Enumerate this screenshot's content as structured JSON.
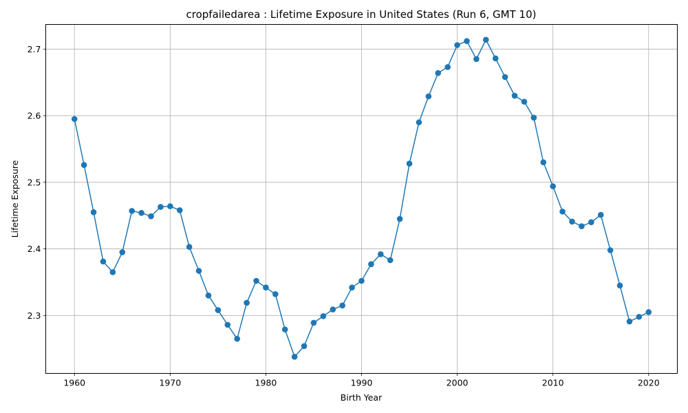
{
  "chart_data": {
    "type": "line",
    "title": "cropfailedarea : Lifetime Exposure in United States (Run 6, GMT 10)",
    "xlabel": "Birth Year",
    "ylabel": "Lifetime Exposure",
    "xlim": [
      1957,
      2023
    ],
    "ylim": [
      2.213,
      2.737
    ],
    "xticks": [
      1960,
      1970,
      1980,
      1990,
      2000,
      2010,
      2020
    ],
    "yticks": [
      2.3,
      2.4,
      2.5,
      2.6,
      2.7
    ],
    "grid": true,
    "color": "#1f77b4",
    "series": [
      {
        "x": [
          1960,
          1961,
          1962,
          1963,
          1964,
          1965,
          1966,
          1967,
          1968,
          1969,
          1970,
          1971,
          1972,
          1973,
          1974,
          1975,
          1976,
          1977,
          1978,
          1979,
          1980,
          1981,
          1982,
          1983,
          1984,
          1985,
          1986,
          1987,
          1988,
          1989,
          1990,
          1991,
          1992,
          1993,
          1994,
          1995,
          1996,
          1997,
          1998,
          1999,
          2000,
          2001,
          2002,
          2003,
          2004,
          2005,
          2006,
          2007,
          2008,
          2009,
          2010,
          2011,
          2012,
          2013,
          2014,
          2015,
          2016,
          2017,
          2018,
          2019,
          2020
        ],
        "values": [
          2.595,
          2.526,
          2.455,
          2.381,
          2.365,
          2.395,
          2.457,
          2.454,
          2.449,
          2.463,
          2.464,
          2.458,
          2.403,
          2.367,
          2.33,
          2.308,
          2.286,
          2.265,
          2.319,
          2.352,
          2.342,
          2.332,
          2.279,
          2.238,
          2.254,
          2.289,
          2.299,
          2.309,
          2.315,
          2.342,
          2.352,
          2.377,
          2.392,
          2.383,
          2.445,
          2.528,
          2.59,
          2.629,
          2.664,
          2.673,
          2.706,
          2.712,
          2.685,
          2.714,
          2.686,
          2.658,
          2.63,
          2.621,
          2.597,
          2.53,
          2.494,
          2.456,
          2.441,
          2.434,
          2.44,
          2.451,
          2.398,
          2.345,
          2.291,
          2.298,
          2.305
        ]
      }
    ]
  }
}
